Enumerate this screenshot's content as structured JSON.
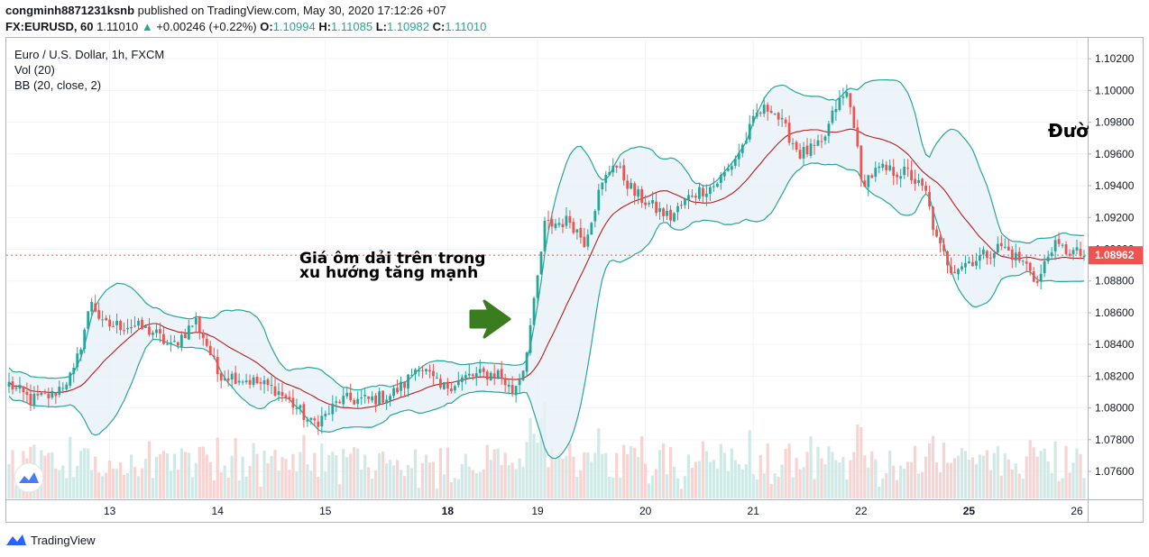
{
  "header": {
    "publisher": "congminh8871231ksnb",
    "published_text": " published on TradingView.com, May 30, 2020 17:12:26 +07",
    "symbol": "FX:EURUSD, 60",
    "last": "1.11010",
    "change": "+0.00246 (+0.22%)",
    "o_label": "O:",
    "o": "1.10994",
    "h_label": "H:",
    "h": "1.11085",
    "l_label": "L:",
    "l": "1.10982",
    "c_label": "C:",
    "c": "1.11010"
  },
  "legend": {
    "title": "Euro / U.S. Dollar, 1h, FXCM",
    "vol": "Vol (20)",
    "bb": "BB (20, close, 2)"
  },
  "footer": {
    "brand": "TradingView",
    "logo_icon": "tradingview-logo-icon"
  },
  "colors": {
    "up": "#26a69a",
    "down": "#ef5350",
    "band": "#26a69a",
    "basis": "#b71c1c",
    "fill": "#e8f1f8",
    "arrow": "#3a7d1e",
    "vol_up": "#cfe9e6",
    "vol_down": "#f7d3d2"
  },
  "chart_data": {
    "type": "candlestick",
    "y_ticks": [
      "1.10200",
      "1.10000",
      "1.09800",
      "1.09600",
      "1.09400",
      "1.09200",
      "1.09000",
      "1.08800",
      "1.08600",
      "1.08400",
      "1.08200",
      "1.08000",
      "1.07800",
      "1.07600"
    ],
    "y_tick_values": [
      1.102,
      1.1,
      1.098,
      1.096,
      1.094,
      1.092,
      1.09,
      1.088,
      1.086,
      1.084,
      1.082,
      1.08,
      1.078,
      1.076
    ],
    "ylim": [
      1.0743,
      1.1032
    ],
    "x_ticks": [
      "13",
      "14",
      "15",
      "18",
      "19",
      "20",
      "21",
      "22",
      "25",
      "26"
    ],
    "x_tick_bold": [
      "18",
      "25"
    ],
    "x_tick_index": [
      28,
      58,
      88,
      122,
      147,
      177,
      207,
      237,
      267,
      297
    ],
    "bar_count": 300,
    "price_label": "1.08962",
    "price_value": 1.08962,
    "close_waypoints": [
      [
        0,
        1.0815
      ],
      [
        6,
        1.0805
      ],
      [
        12,
        1.0808
      ],
      [
        18,
        1.0822
      ],
      [
        23,
        1.0868
      ],
      [
        26,
        1.0852
      ],
      [
        34,
        1.0852
      ],
      [
        40,
        1.0848
      ],
      [
        45,
        1.0838
      ],
      [
        52,
        1.0855
      ],
      [
        55,
        1.084
      ],
      [
        58,
        1.0822
      ],
      [
        66,
        1.0818
      ],
      [
        74,
        1.0812
      ],
      [
        80,
        1.08
      ],
      [
        84,
        1.079
      ],
      [
        88,
        1.0795
      ],
      [
        92,
        1.0805
      ],
      [
        100,
        1.0805
      ],
      [
        106,
        1.0808
      ],
      [
        110,
        1.0815
      ],
      [
        114,
        1.0828
      ],
      [
        120,
        1.0812
      ],
      [
        128,
        1.082
      ],
      [
        136,
        1.0822
      ],
      [
        140,
        1.081
      ],
      [
        143,
        1.0825
      ],
      [
        146,
        1.0865
      ],
      [
        149,
        1.0915
      ],
      [
        156,
        1.0918
      ],
      [
        160,
        1.0905
      ],
      [
        164,
        1.0935
      ],
      [
        168,
        1.0955
      ],
      [
        174,
        1.0935
      ],
      [
        180,
        1.0925
      ],
      [
        184,
        1.092
      ],
      [
        190,
        1.0935
      ],
      [
        196,
        1.094
      ],
      [
        200,
        1.095
      ],
      [
        204,
        1.0965
      ],
      [
        208,
        1.0985
      ],
      [
        212,
        1.099
      ],
      [
        216,
        1.0975
      ],
      [
        220,
        1.096
      ],
      [
        226,
        1.0965
      ],
      [
        230,
        1.099
      ],
      [
        233,
        1.0998
      ],
      [
        235,
        1.098
      ],
      [
        237,
        1.0942
      ],
      [
        242,
        1.095
      ],
      [
        250,
        1.0948
      ],
      [
        255,
        1.0935
      ],
      [
        258,
        1.0905
      ],
      [
        262,
        1.0888
      ],
      [
        270,
        1.0895
      ],
      [
        276,
        1.0902
      ],
      [
        284,
        1.0888
      ],
      [
        286,
        1.0878
      ],
      [
        290,
        1.0902
      ],
      [
        296,
        1.0898
      ],
      [
        299,
        1.0896
      ]
    ],
    "volume_note": "volume histogram at bottom"
  },
  "annotation": {
    "text_line1": "Giá ôm dải trên trong",
    "text_line2": "xu hướng tăng mạnh",
    "right_text": "Đườ",
    "arrow_icon": "right-arrow-icon"
  }
}
